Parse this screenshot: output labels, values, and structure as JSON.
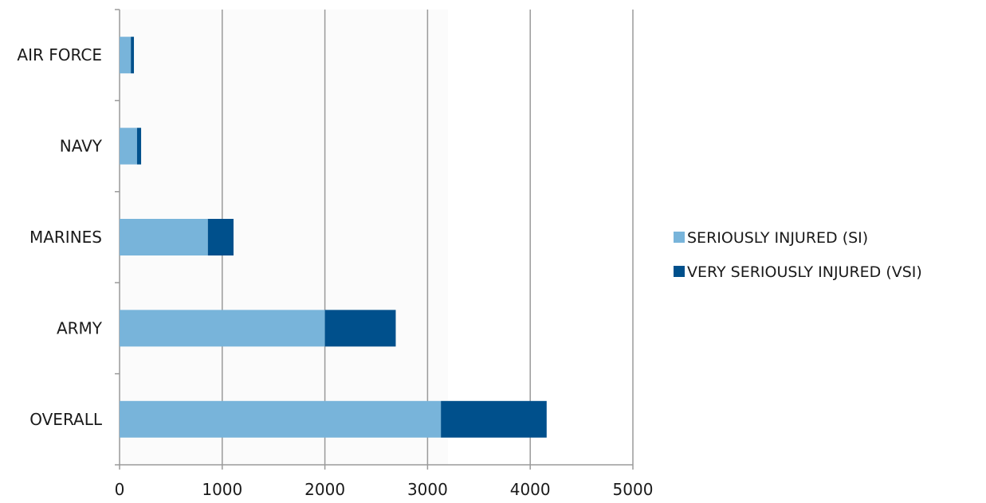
{
  "chart_data": {
    "type": "bar",
    "orientation": "horizontal",
    "stacked": true,
    "categories": [
      "AIR FORCE",
      "NAVY",
      "MARINES",
      "ARMY",
      "OVERALL"
    ],
    "series": [
      {
        "name": "SERIOUSLY INJURED (SI)",
        "color": "#78b4da",
        "values": [
          110,
          170,
          860,
          2000,
          3130
        ]
      },
      {
        "name": "VERY SERIOUSLY INJURED (VSI)",
        "color": "#00508c",
        "values": [
          30,
          40,
          250,
          690,
          1030
        ]
      }
    ],
    "x_ticks": [
      "0",
      "1000",
      "2000",
      "3000",
      "4000",
      "5000"
    ],
    "xlim": [
      0,
      5000
    ],
    "grid": true,
    "legend_position": "right"
  }
}
